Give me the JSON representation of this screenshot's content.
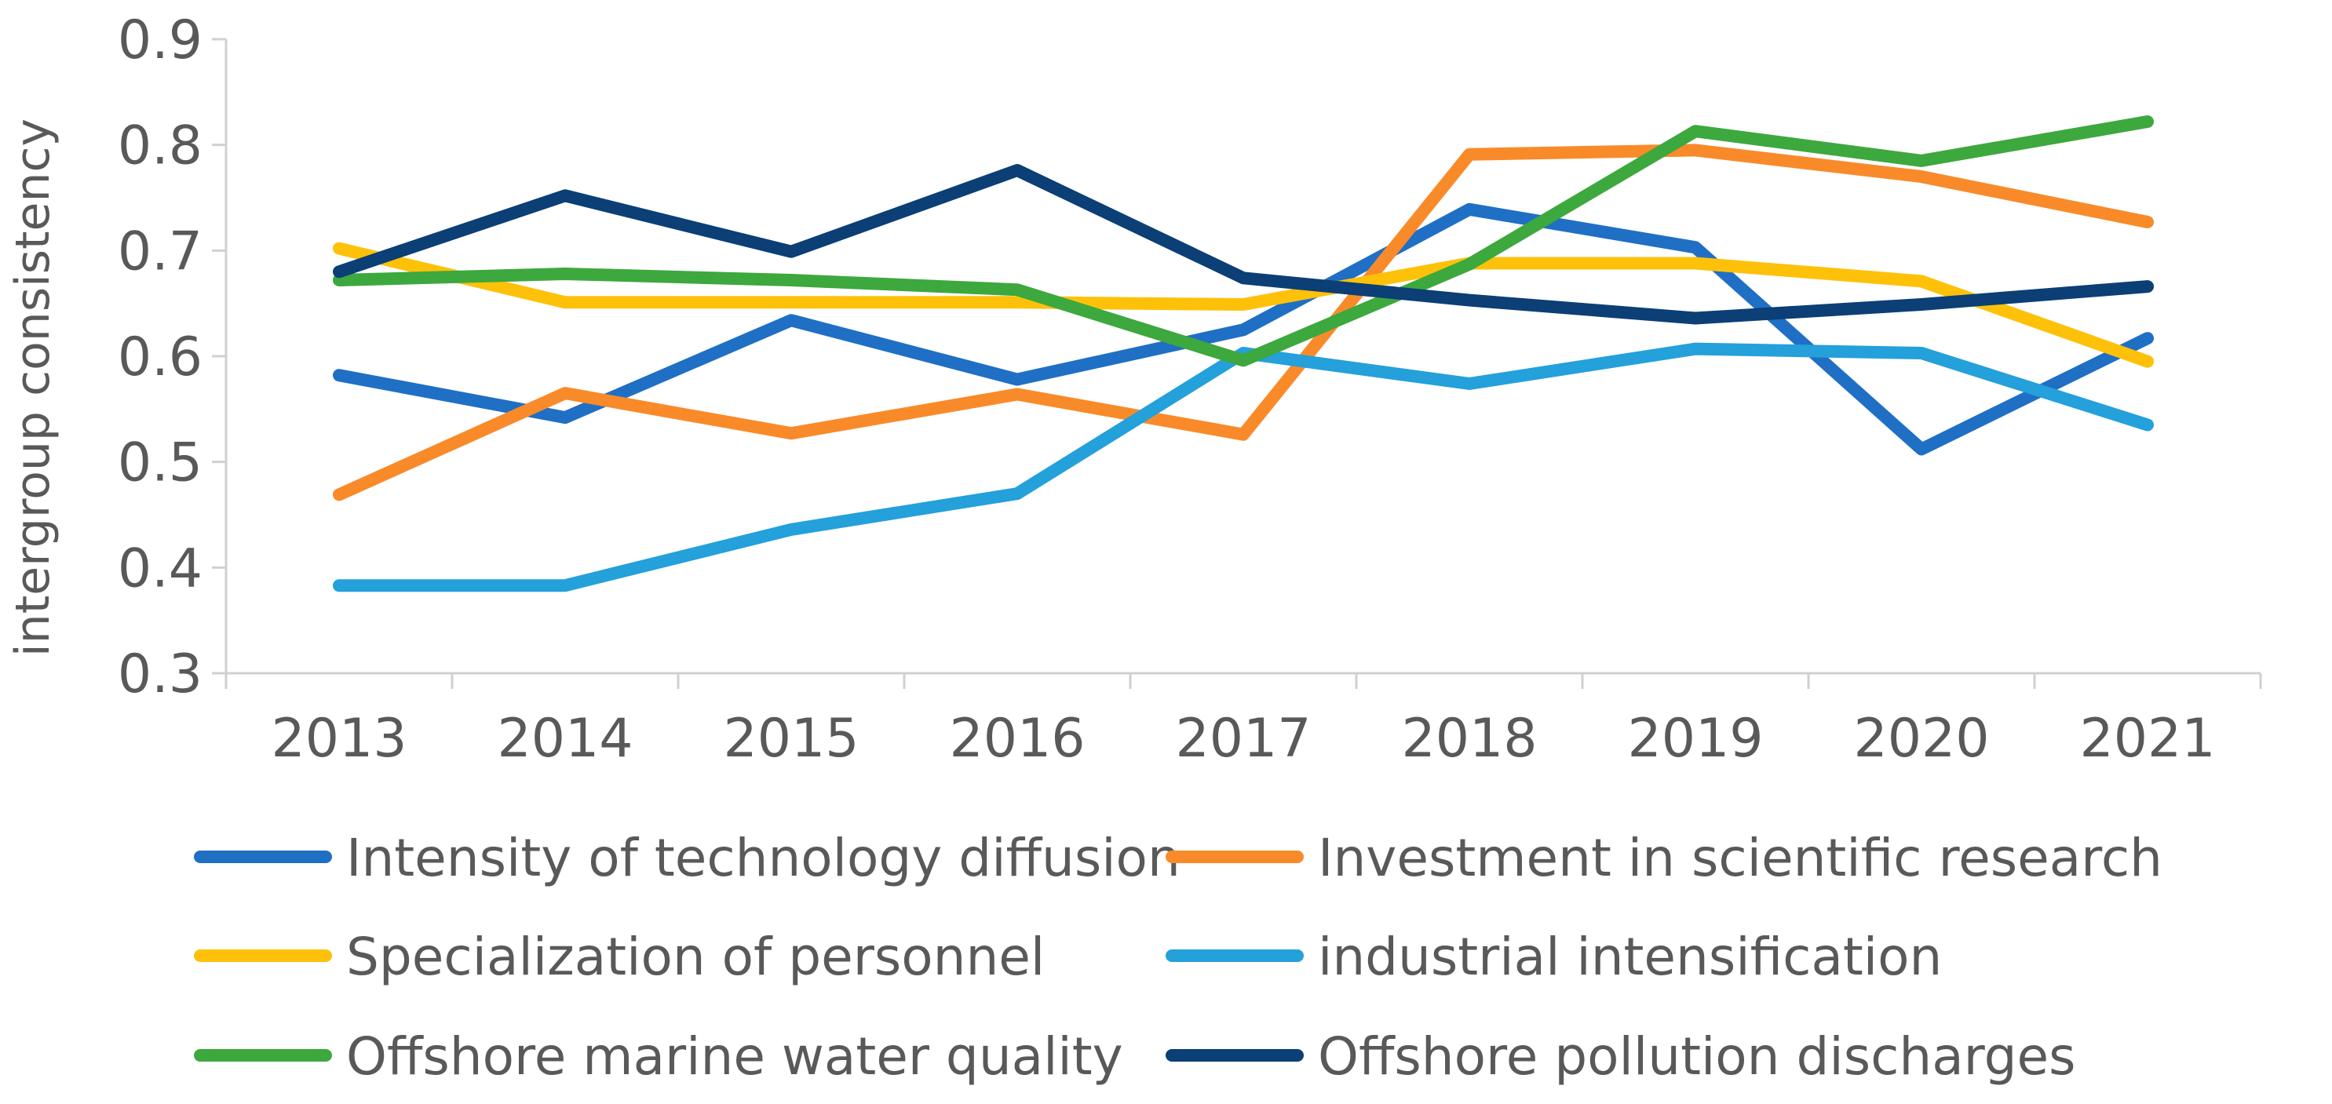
{
  "chart_data": {
    "type": "line",
    "title": "",
    "xlabel": "",
    "ylabel": "intergroup consistency",
    "ylim": [
      0.3,
      0.9
    ],
    "yticks": [
      "0.3",
      "0.4",
      "0.5",
      "0.6",
      "0.7",
      "0.8",
      "0.9"
    ],
    "categories": [
      "2013",
      "2014",
      "2015",
      "2016",
      "2017",
      "2018",
      "2019",
      "2020",
      "2021"
    ],
    "legend_position": "bottom",
    "series": [
      {
        "name": "Intensity of technology diffusion",
        "color": "#1F6FC5",
        "values": [
          0.582,
          0.542,
          0.634,
          0.578,
          0.625,
          0.739,
          0.703,
          0.512,
          0.617
        ]
      },
      {
        "name": "Investment in scientific research",
        "color": "#F98A2A",
        "values": [
          0.469,
          0.565,
          0.527,
          0.564,
          0.526,
          0.791,
          0.795,
          0.77,
          0.727
        ]
      },
      {
        "name": "Specialization of personnel",
        "color": "#FEC10A",
        "values": [
          0.702,
          0.651,
          0.651,
          0.651,
          0.649,
          0.688,
          0.688,
          0.671,
          0.595
        ]
      },
      {
        "name": "industrial intensification",
        "color": "#24A0DB",
        "values": [
          0.383,
          0.383,
          0.436,
          0.47,
          0.603,
          0.574,
          0.607,
          0.603,
          0.535
        ]
      },
      {
        "name": "Offshore marine water quality",
        "color": "#3DA83D",
        "values": [
          0.672,
          0.678,
          0.672,
          0.663,
          0.596,
          0.687,
          0.813,
          0.785,
          0.822
        ]
      },
      {
        "name": "Offshore pollution discharges",
        "color": "#0B3F75",
        "values": [
          0.68,
          0.752,
          0.699,
          0.776,
          0.674,
          0.653,
          0.636,
          0.649,
          0.666
        ]
      }
    ]
  }
}
